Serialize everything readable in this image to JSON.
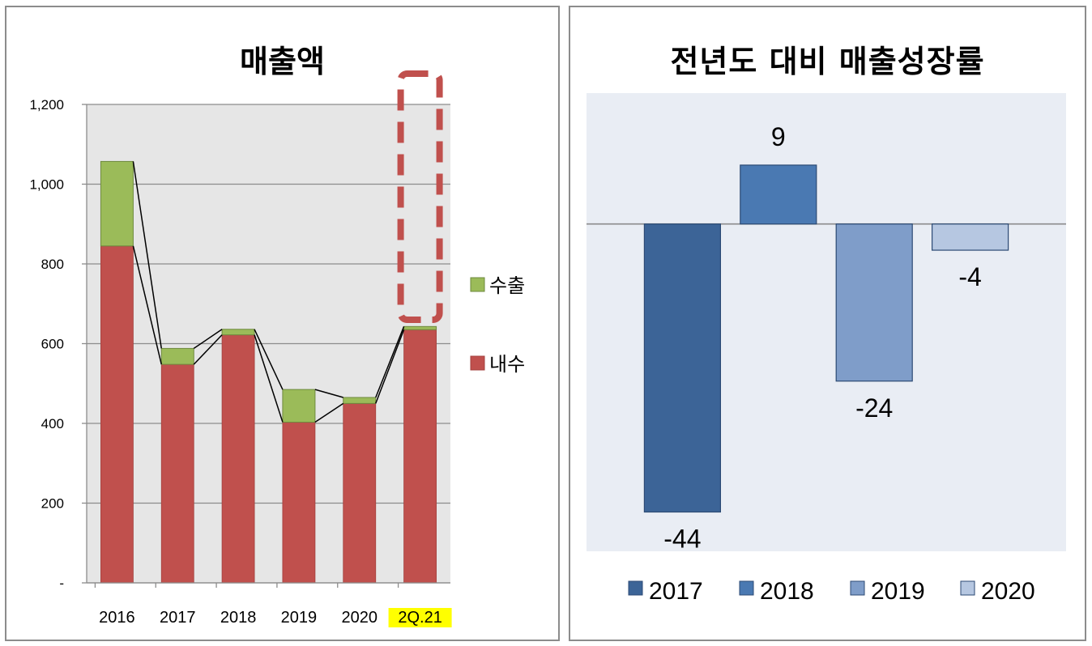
{
  "left_chart": {
    "title": "매출액",
    "colors": {
      "domestic": "#c0504d",
      "export": "#9bbb59",
      "plot_bg": "#e6e6e6",
      "highlight": "#ffff00",
      "dash_box": "#c0504d"
    },
    "chart_data": {
      "type": "bar",
      "stacked": true,
      "categories": [
        "2016",
        "2017",
        "2018",
        "2019",
        "2020",
        "2Q.21"
      ],
      "series": [
        {
          "name": "내수",
          "values": [
            845,
            548,
            622,
            403,
            450,
            635
          ]
        },
        {
          "name": "수출",
          "values": [
            212,
            40,
            14,
            82,
            15,
            8
          ]
        }
      ],
      "ylim": [
        0,
        1200
      ],
      "yticks": [
        "-",
        "200",
        "400",
        "600",
        "800",
        "1,000",
        "1,200"
      ],
      "highlighted_category": "2Q.21",
      "grid": true,
      "legend": "right"
    }
  },
  "right_chart": {
    "title": "전년도 대비 매출성장률",
    "colors": {
      "plot_bg": "#e9edf4"
    },
    "chart_data": {
      "type": "bar",
      "categories": [
        "2017",
        "2018",
        "2019",
        "2020"
      ],
      "values": [
        -44,
        9,
        -24,
        -4
      ],
      "labels": [
        "-44",
        "9",
        "-24",
        "-4"
      ],
      "series_colors": [
        "#3c6497",
        "#4a79b2",
        "#7f9dc9",
        "#b6c7e1"
      ],
      "ylim": [
        -50,
        20
      ],
      "legend": "bottom"
    }
  }
}
